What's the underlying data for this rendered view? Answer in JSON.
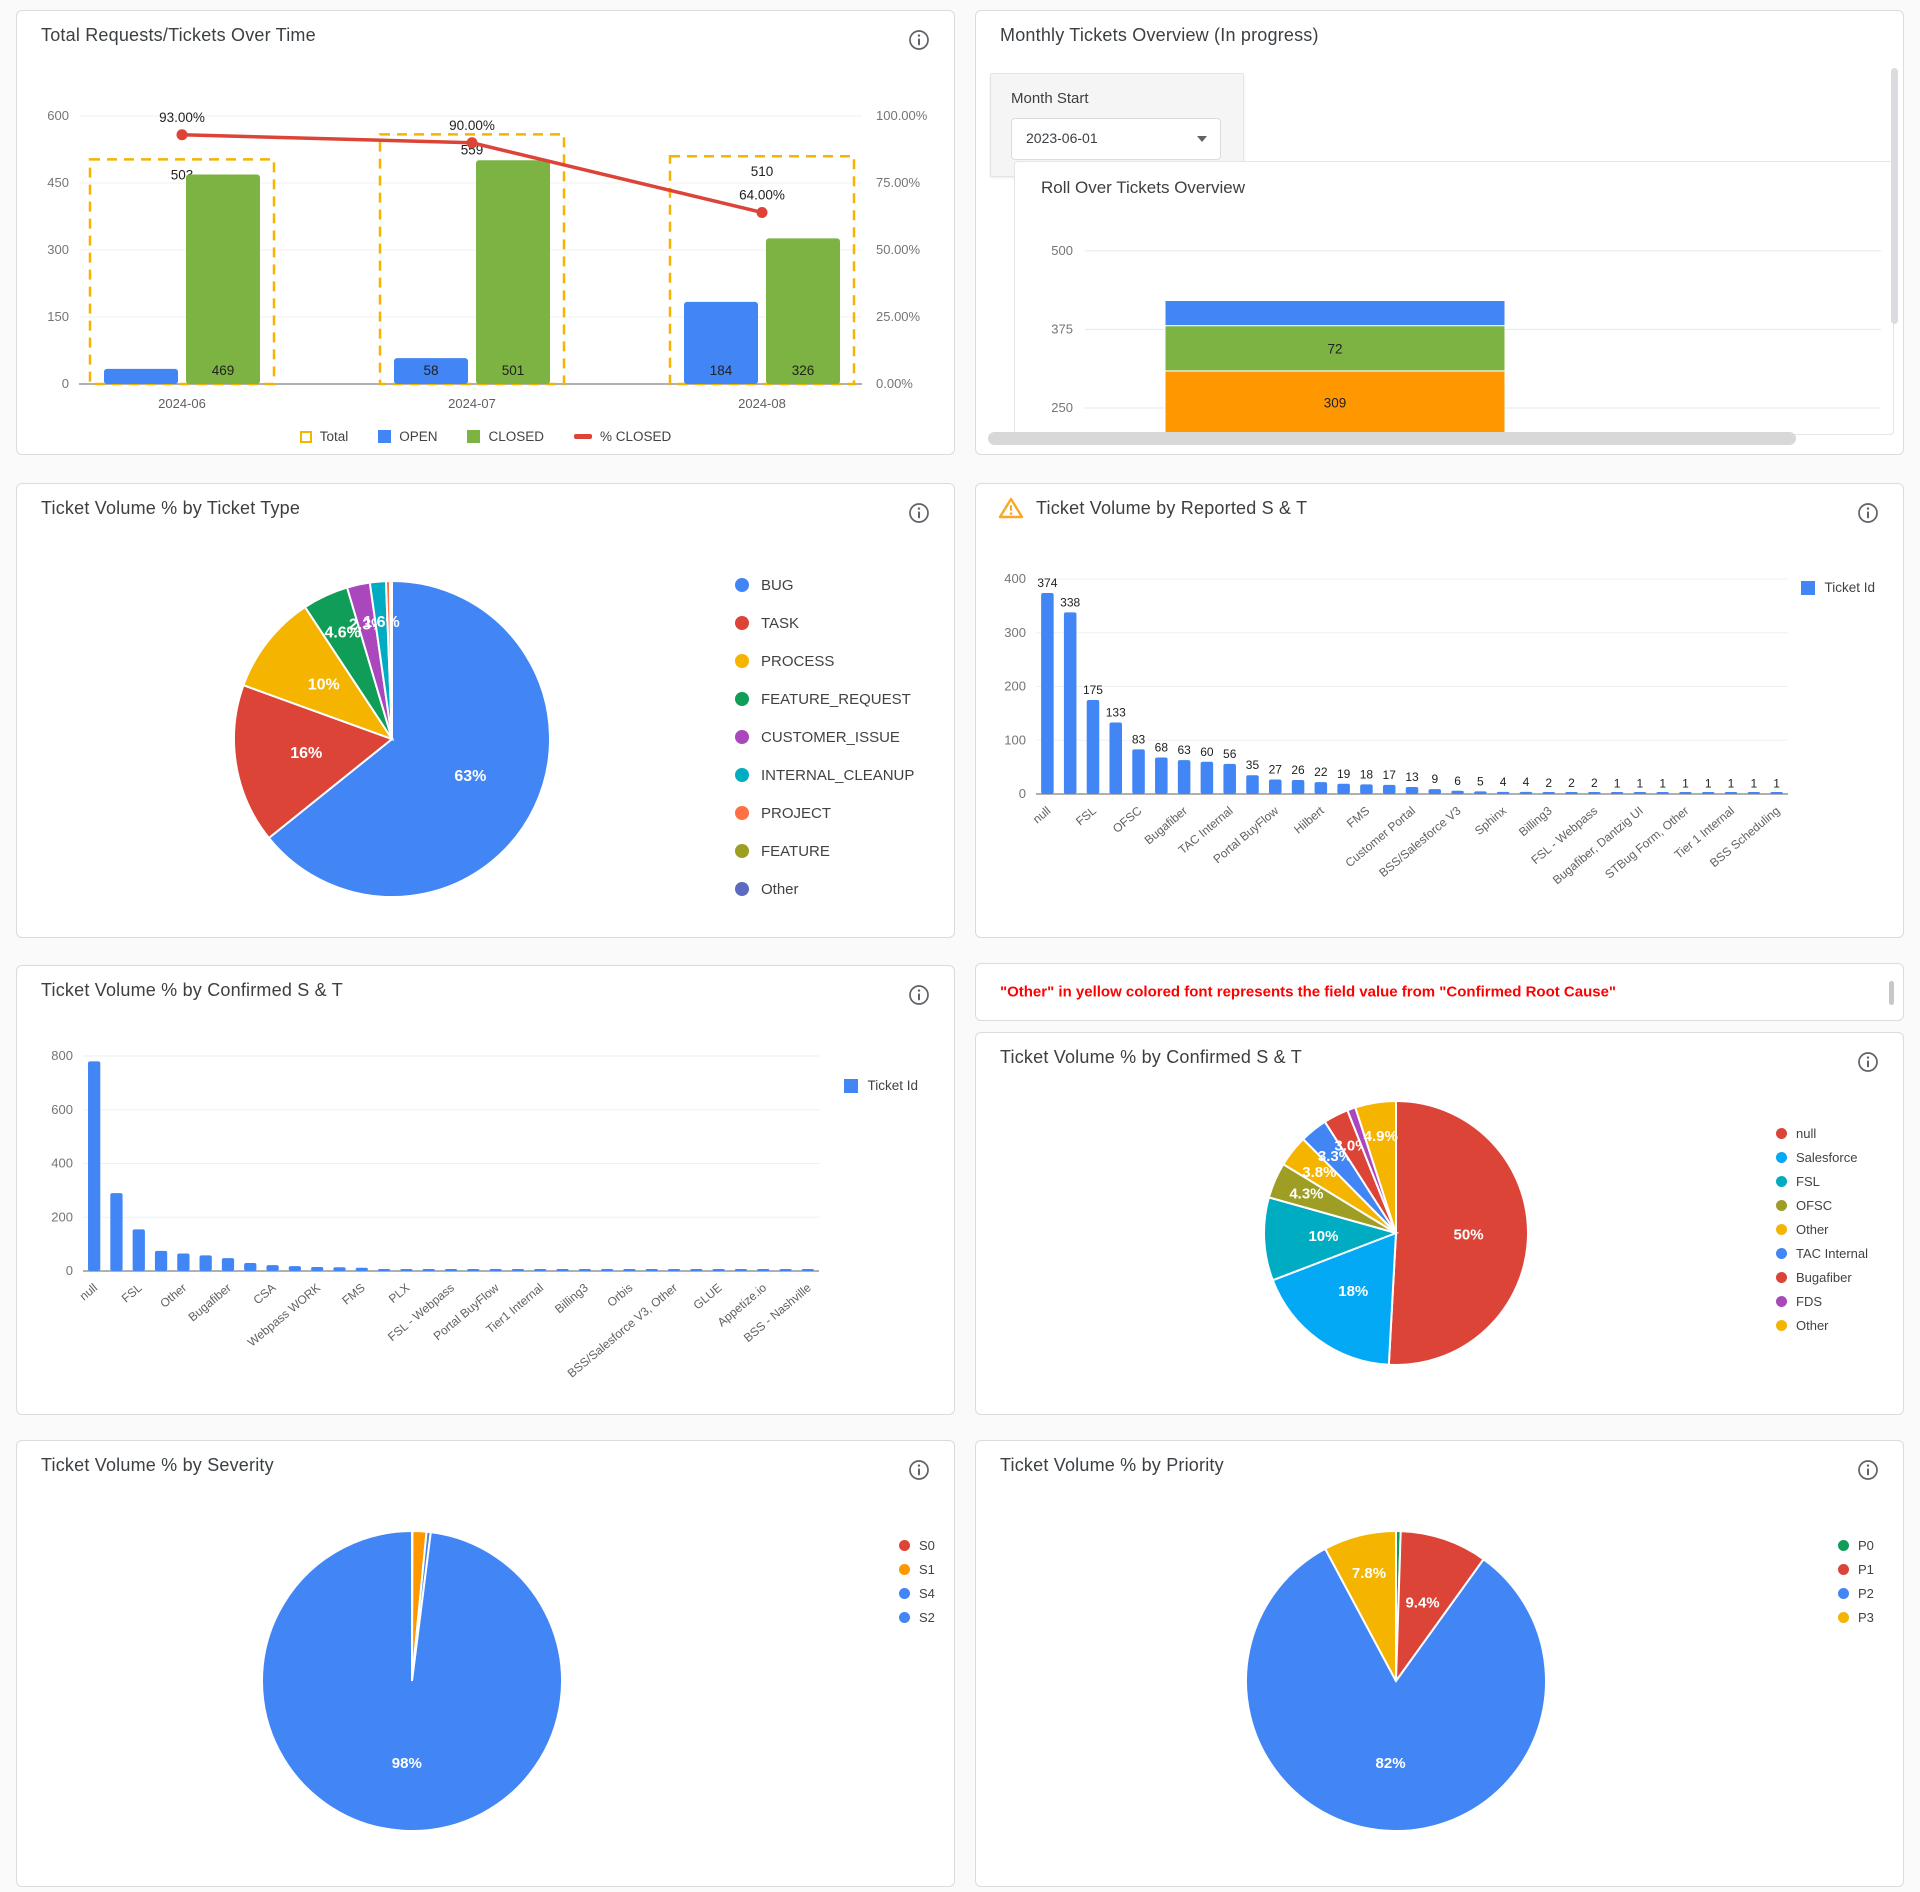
{
  "panels": {
    "total_over_time": {
      "title": "Total Requests/Tickets Over Time",
      "legend": [
        {
          "label": "Total",
          "color": "#f4b400",
          "style": "dashed"
        },
        {
          "label": "OPEN",
          "color": "#4285f4",
          "style": "box"
        },
        {
          "label": "CLOSED",
          "color": "#7cb342",
          "style": "box"
        },
        {
          "label": "% CLOSED",
          "color": "#db4437",
          "style": "dash"
        }
      ]
    },
    "monthly_overview": {
      "title": "Monthly Tickets Overview (In progress)",
      "month_start_label": "Month Start",
      "month_start_value": "2023-06-01",
      "inner_title": "Roll Over Tickets Overview"
    },
    "ticket_type": {
      "title": "Ticket Volume % by Ticket Type"
    },
    "reported_st": {
      "title": "Ticket Volume by Reported S & T"
    },
    "confirmed_st_bar": {
      "title": "Ticket Volume % by Confirmed S & T"
    },
    "confirmed_note": {
      "text": "\"Other\" in yellow colored font represents the field value from \"Confirmed Root Cause\""
    },
    "confirmed_st_pie": {
      "title": "Ticket Volume % by Confirmed S & T"
    },
    "severity": {
      "title": "Ticket Volume % by Severity"
    },
    "priority": {
      "title": "Ticket Volume % by Priority"
    }
  },
  "chart_data": [
    {
      "id": "total_over_time",
      "type": "combo-bar-line",
      "categories": [
        "2024-06",
        "2024-07",
        "2024-08"
      ],
      "series": [
        {
          "name": "Total",
          "role": "dashed-outline",
          "color": "#f4b400",
          "values": [
            503,
            559,
            510
          ],
          "labels": [
            "503",
            "559",
            "510"
          ]
        },
        {
          "name": "OPEN",
          "role": "bar",
          "color": "#4285f4",
          "values": [
            34,
            58,
            184
          ],
          "labels": [
            "",
            "58",
            "184"
          ]
        },
        {
          "name": "CLOSED",
          "role": "bar",
          "color": "#7cb342",
          "values": [
            469,
            501,
            326
          ],
          "labels": [
            "469",
            "501",
            "326"
          ]
        },
        {
          "name": "% CLOSED",
          "role": "line",
          "color": "#db4437",
          "axis": "right",
          "values": [
            93,
            90,
            64
          ],
          "labels": [
            "93.00%",
            "90.00%",
            "64.00%"
          ]
        }
      ],
      "y_left": {
        "min": 0,
        "max": 600,
        "ticks": [
          0,
          150,
          300,
          450,
          600
        ]
      },
      "y_right": {
        "min": 0,
        "max": 100,
        "ticks": [
          "0.00%",
          "25.00%",
          "50.00%",
          "75.00%",
          "100.00%"
        ]
      }
    },
    {
      "id": "roll_over",
      "type": "stacked-bar",
      "segments": [
        {
          "name": "bottom",
          "color": "#ff9800",
          "value": 309,
          "label": "309"
        },
        {
          "name": "middle",
          "color": "#7cb342",
          "value": 72,
          "label": "72"
        },
        {
          "name": "top",
          "color": "#4285f4",
          "value": 40,
          "label": ""
        }
      ],
      "y": {
        "view_min": 215,
        "view_max": 530,
        "ticks": [
          250,
          375,
          500
        ]
      }
    },
    {
      "id": "ticket_type",
      "type": "pie",
      "slices": [
        {
          "name": "BUG",
          "value": 63,
          "color": "#4285f4",
          "label": "63%"
        },
        {
          "name": "TASK",
          "value": 16,
          "color": "#db4437",
          "label": "16%"
        },
        {
          "name": "PROCESS",
          "value": 10,
          "color": "#f4b400",
          "label": "10%"
        },
        {
          "name": "FEATURE_REQUEST",
          "value": 4.6,
          "color": "#0f9d58",
          "label": "4.6%"
        },
        {
          "name": "CUSTOMER_ISSUE",
          "value": 2.3,
          "color": "#ab47bc",
          "label": "2.3%"
        },
        {
          "name": "INTERNAL_CLEANUP",
          "value": 1.6,
          "color": "#00acc1",
          "label": "1.6%"
        },
        {
          "name": "PROJECT",
          "value": 0.4,
          "color": "#ff7043",
          "label": ""
        },
        {
          "name": "FEATURE",
          "value": 0.1,
          "color": "#9e9d24",
          "label": ""
        },
        {
          "name": "Other",
          "value": 0.1,
          "color": "#5c6bc0",
          "label": ""
        }
      ]
    },
    {
      "id": "reported_st",
      "type": "bar",
      "legend_label": "Ticket Id",
      "bar_color": "#4285f4",
      "show_values": true,
      "values": [
        374,
        338,
        175,
        133,
        83,
        68,
        63,
        60,
        56,
        35,
        27,
        26,
        22,
        19,
        18,
        17,
        13,
        9,
        6,
        5,
        4,
        4,
        2,
        2,
        2,
        1,
        1,
        1,
        1,
        1,
        1,
        1,
        1
      ],
      "categories": [
        "null",
        "",
        "FSL",
        "",
        "OFSC",
        "",
        "Bugafiber",
        "",
        "TAC Internal",
        "",
        "Portal BuyFlow",
        "",
        "Hilbert",
        "",
        "FMS",
        "",
        "Customer Portal",
        "",
        "BSS/Salesforce V3",
        "",
        "Sphinx",
        "",
        "Billing3",
        "",
        "FSL - Webpass",
        "",
        "Bugafiber, Dantzig UI",
        "",
        "STBug Form, Other",
        "",
        "Tier 1 Internal",
        "",
        "BSS Scheduling"
      ],
      "y": {
        "max": 400,
        "ticks": [
          0,
          100,
          200,
          300,
          400
        ]
      }
    },
    {
      "id": "confirmed_st_bar",
      "type": "bar",
      "legend_label": "Ticket Id",
      "bar_color": "#4285f4",
      "show_values": false,
      "values": [
        780,
        290,
        155,
        75,
        65,
        58,
        48,
        30,
        22,
        18,
        15,
        14,
        12,
        6,
        5,
        5,
        5,
        5,
        4,
        4,
        4,
        4,
        4,
        3,
        3,
        3,
        3,
        3,
        3,
        3,
        3,
        3,
        3
      ],
      "categories": [
        "null",
        "",
        "FSL",
        "",
        "Other",
        "",
        "Bugafiber",
        "",
        "CSA",
        "",
        "Webpass WORK",
        "",
        "FMS",
        "",
        "PLX",
        "",
        "FSL - Webpass",
        "",
        "Portal BuyFlow",
        "",
        "Tier1 Internal",
        "",
        "Billing3",
        "",
        "Orbis",
        "",
        "BSS/Salesforce V3, Other",
        "",
        "GLUE",
        "",
        "Appetize.io",
        "",
        "BSS - Nashville"
      ],
      "y": {
        "max": 800,
        "ticks": [
          0,
          200,
          400,
          600,
          800
        ]
      }
    },
    {
      "id": "confirmed_st_pie",
      "type": "pie",
      "slices": [
        {
          "name": "null",
          "value": 50,
          "color": "#db4437",
          "label": "50%"
        },
        {
          "name": "Salesforce",
          "value": 18,
          "color": "#03a9f4",
          "label": "18%"
        },
        {
          "name": "FSL",
          "value": 10,
          "color": "#00acc1",
          "label": "10%"
        },
        {
          "name": "OFSC",
          "value": 4.3,
          "color": "#9e9d24",
          "label": "4.3%"
        },
        {
          "name": "Other",
          "value": 3.8,
          "color": "#f4b400",
          "label": "3.8%"
        },
        {
          "name": "TAC Internal",
          "value": 3.3,
          "color": "#4285f4",
          "label": "3.3%"
        },
        {
          "name": "Bugafiber",
          "value": 3.0,
          "color": "#db4437",
          "label": "3.0%"
        },
        {
          "name": "FDS",
          "value": 1.0,
          "color": "#ab47bc",
          "label": ""
        },
        {
          "name": "Other",
          "value": 4.9,
          "color": "#f4b400",
          "label": "4.9%"
        }
      ]
    },
    {
      "id": "severity",
      "type": "pie",
      "slices": [
        {
          "name": "S0",
          "value": 0.05,
          "color": "#db4437",
          "label": ""
        },
        {
          "name": "S1",
          "value": 1.5,
          "color": "#ff9800",
          "label": ""
        },
        {
          "name": "S4",
          "value": 0.45,
          "color": "#4285f4",
          "label": ""
        },
        {
          "name": "S2",
          "value": 98,
          "color": "#4285f4",
          "label": "98%"
        }
      ]
    },
    {
      "id": "priority",
      "type": "pie",
      "slices": [
        {
          "name": "P0",
          "value": 0.5,
          "color": "#0f9d58",
          "label": ""
        },
        {
          "name": "P1",
          "value": 9.4,
          "color": "#db4437",
          "label": "9.4%"
        },
        {
          "name": "P2",
          "value": 82,
          "color": "#4285f4",
          "label": "82%"
        },
        {
          "name": "P3",
          "value": 7.8,
          "color": "#f4b400",
          "label": "7.8%"
        }
      ]
    }
  ]
}
